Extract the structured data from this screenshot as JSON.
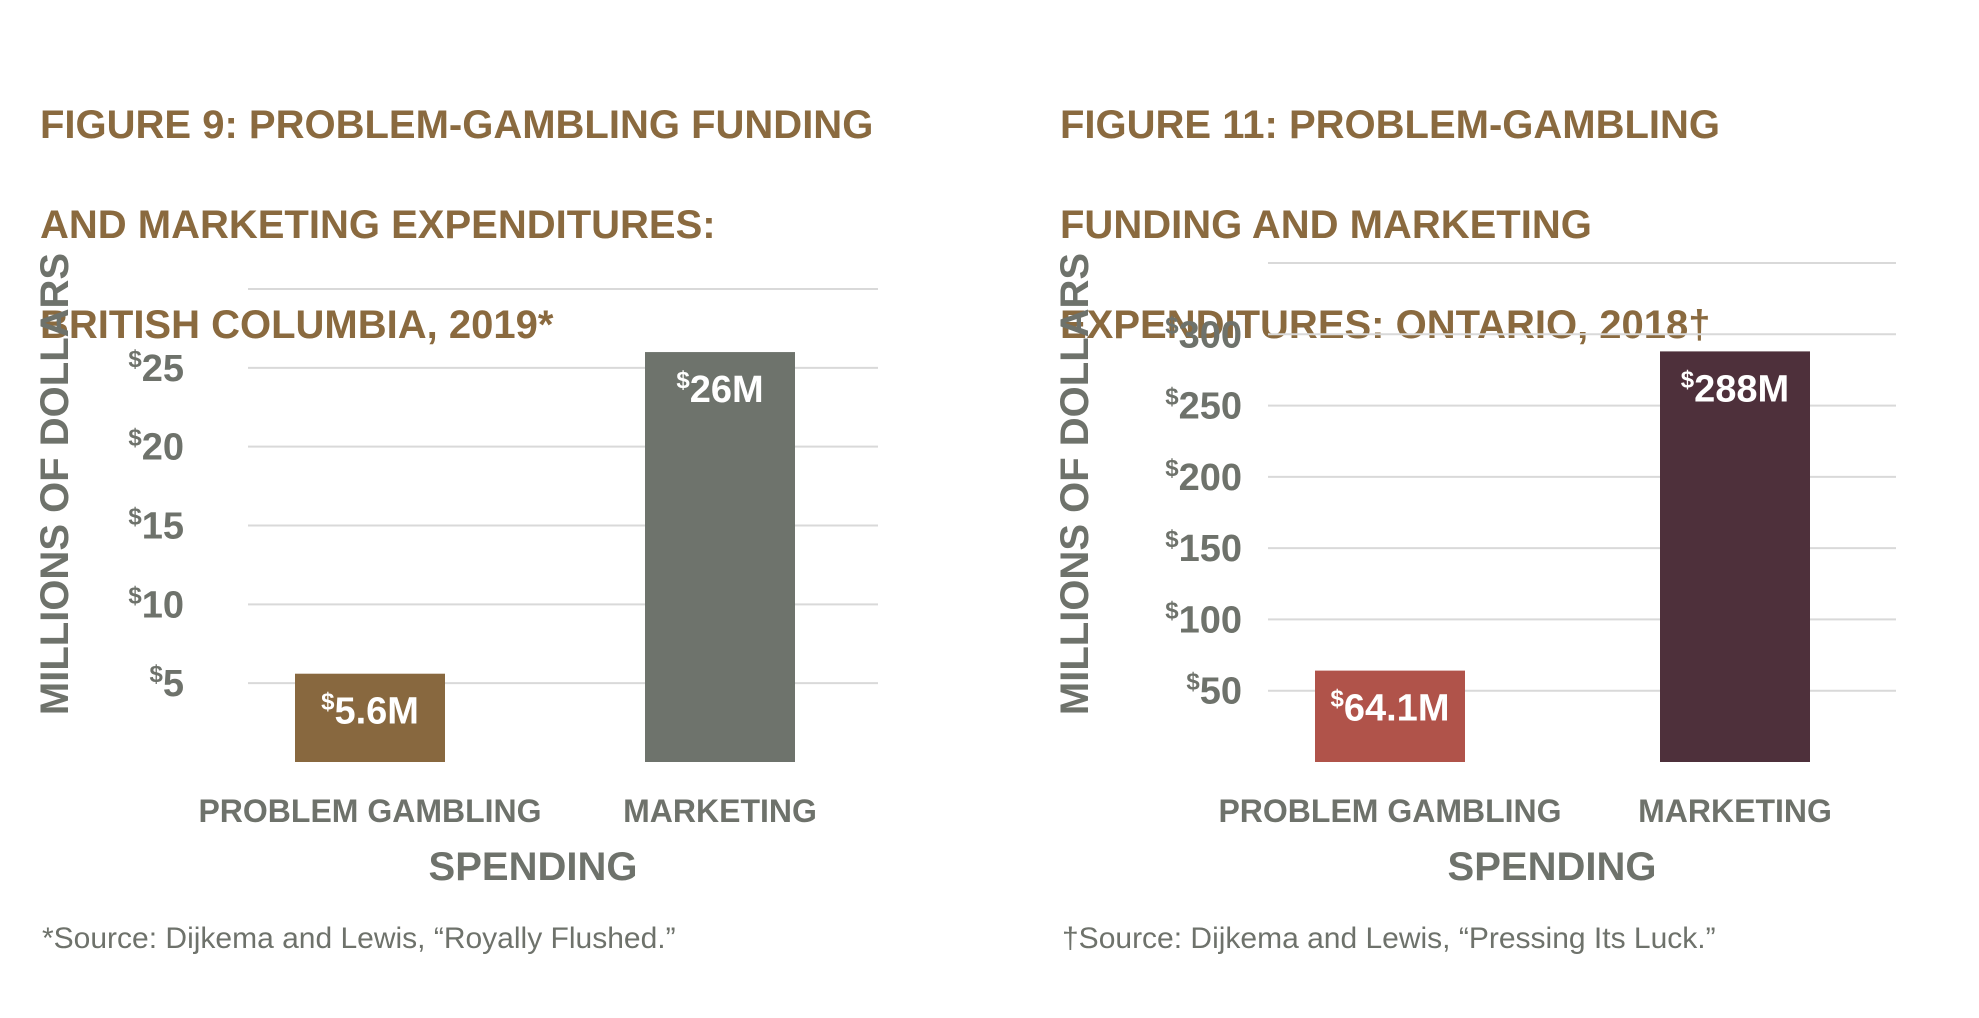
{
  "colors": {
    "title": "#8a6a3f",
    "axis_text": "#6e726b",
    "grid": "#d9d9d9",
    "label_on_bar": "#ffffff"
  },
  "chart_data": [
    {
      "type": "bar",
      "title": "FIGURE 9: PROBLEM-GAMBLING FUNDING AND MARKETING EXPENDITURES: BRITISH COLUMBIA, 2019*",
      "title_lines": [
        "FIGURE 9: PROBLEM-GAMBLING FUNDING",
        "AND MARKETING EXPENDITURES:",
        "BRITISH COLUMBIA, 2019*"
      ],
      "xlabel": "SPENDING",
      "ylabel": "MILLIONS OF DOLLARS",
      "categories": [
        "PROBLEM GAMBLING",
        "MARKETING"
      ],
      "values": [
        5.6,
        26
      ],
      "data_labels": [
        "5.6M",
        "26M"
      ],
      "data_label_prefix": "$",
      "bar_colors": [
        "#88683f",
        "#6e736c"
      ],
      "yticks": [
        5,
        10,
        15,
        20,
        25
      ],
      "ytick_labels": [
        "5",
        "10",
        "15",
        "20",
        "25"
      ],
      "ytick_prefix": "$",
      "ylim": [
        0,
        30
      ],
      "grid": true,
      "source": "*Source: Dijkema and Lewis, “Royally Flushed.”"
    },
    {
      "type": "bar",
      "title": "FIGURE 11: PROBLEM-GAMBLING FUNDING AND MARKETING EXPENDITURES: ONTARIO, 2018†",
      "title_lines": [
        "FIGURE 11: PROBLEM-GAMBLING",
        "FUNDING AND MARKETING",
        "EXPENDITURES: ONTARIO, 2018†"
      ],
      "xlabel": "SPENDING",
      "ylabel": "MILLIONS OF DOLLARS",
      "categories": [
        "PROBLEM GAMBLING",
        "MARKETING"
      ],
      "values": [
        64.1,
        288
      ],
      "data_labels": [
        "64.1M",
        "288M"
      ],
      "data_label_prefix": "$",
      "bar_colors": [
        "#b0534a",
        "#4e303b"
      ],
      "yticks": [
        50,
        100,
        150,
        200,
        250,
        300
      ],
      "ytick_labels": [
        "50",
        "100",
        "150",
        "200",
        "250",
        "300"
      ],
      "ytick_prefix": "$",
      "ylim": [
        0,
        350
      ],
      "grid": true,
      "source": "†Source: Dijkema and Lewis, “Pressing Its Luck.”"
    }
  ]
}
